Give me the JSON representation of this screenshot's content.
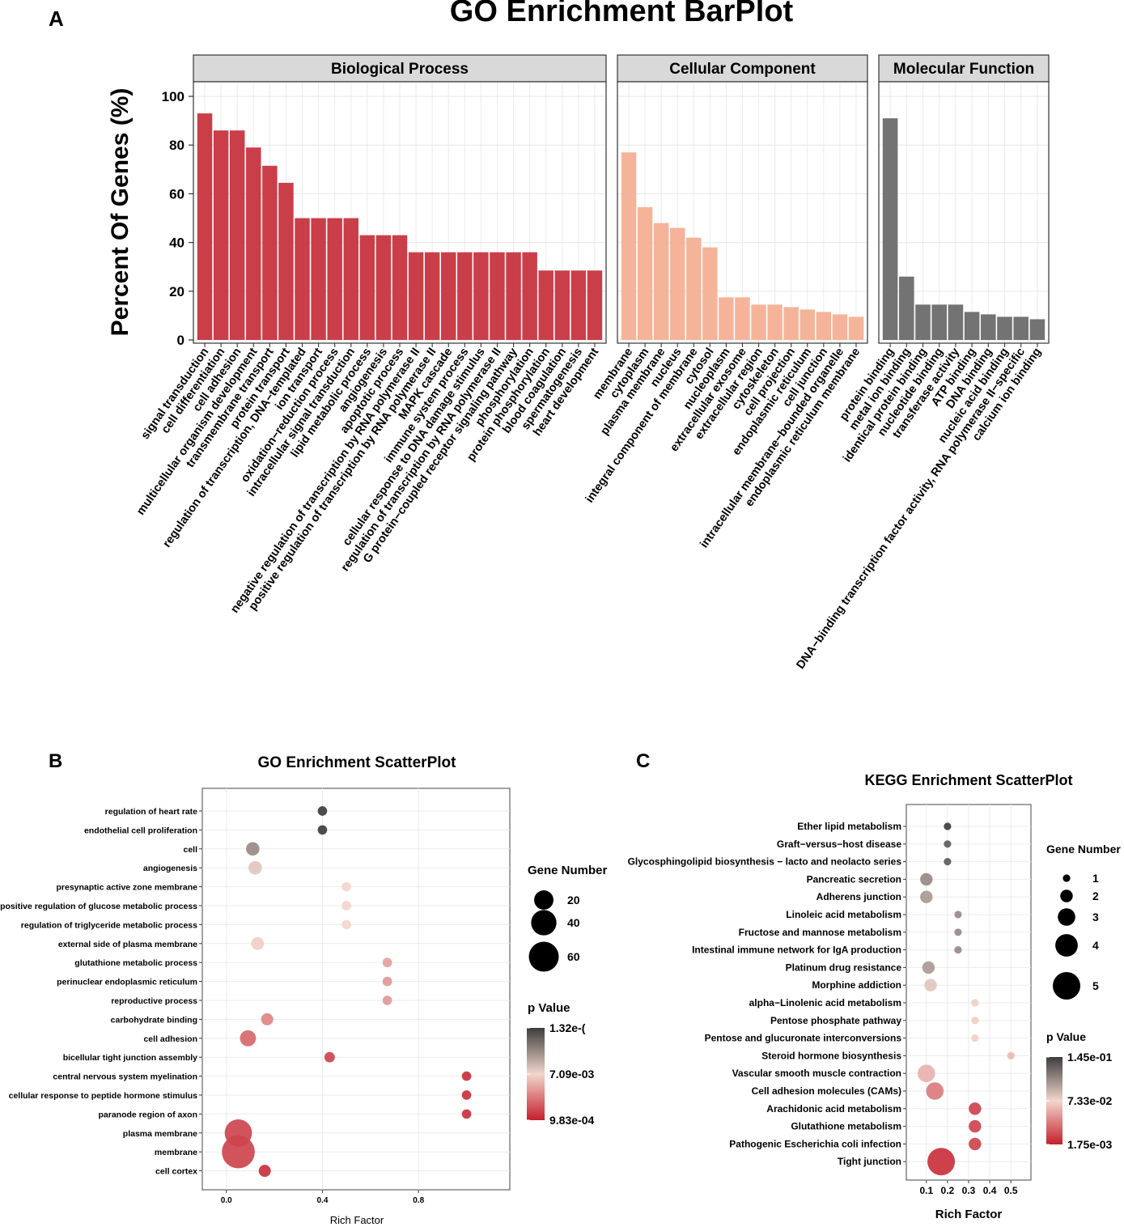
{
  "panel_letters": {
    "a": "A",
    "b": "B",
    "c": "C"
  },
  "colors": {
    "bp": "#c7343f",
    "cc": "#f4b093",
    "mf": "#6b6b6b",
    "strip": "#d9d9d9",
    "grid": "#ebebeb",
    "p_low": "#c41f2d",
    "p_mid": "#f2d6cc",
    "p_high": "#3d3d3d"
  },
  "chart_data": [
    {
      "id": "A",
      "type": "bar",
      "title": "GO Enrichment BarPlot",
      "ylabel": "Percent Of Genes (%)",
      "xlabel": "",
      "ylim": [
        0,
        105
      ],
      "yticks": [
        0,
        20,
        40,
        60,
        80,
        100
      ],
      "grid": true,
      "facets": [
        {
          "name": "Biological Process",
          "color_key": "bp",
          "categories": [
            "signal transduction",
            "cell differentiation",
            "cell adhesion",
            "multicellular organism development",
            "transmembrane transport",
            "protein transport",
            "regulation of transcription, DNA−templated",
            "ion transport",
            "oxidation−reduction process",
            "intracellular signal transduction",
            "lipid metabolic process",
            "angiogenesis",
            "apoptotic process",
            "negative regulation of transcription by RNA polymerase II",
            "positive regulation of transcription by RNA polymerase II",
            "MAPK cascade",
            "immune system process",
            "cellular response to DNA damage stimulus",
            "regulation of transcription by RNA polymerase II",
            "G protein−coupled receptor signaling pathway",
            "phosphorylation",
            "protein phosphorylation",
            "blood coagulation",
            "spermatogenesis",
            "heart development"
          ],
          "values": [
            93,
            86,
            86,
            79,
            71.5,
            64.5,
            50,
            50,
            50,
            50,
            43,
            43,
            43,
            36,
            36,
            36,
            36,
            36,
            36,
            36,
            36,
            28.5,
            28.5,
            28.5,
            28.5
          ]
        },
        {
          "name": "Cellular Component",
          "color_key": "cc",
          "categories": [
            "membrane",
            "cytoplasm",
            "plasma membrane",
            "nucleus",
            "integral component of membrane",
            "cytosol",
            "nucleoplasm",
            "extracellular exosome",
            "extracellular region",
            "cytoskeleton",
            "cell projection",
            "endoplasmic reticulum",
            "cell junction",
            "intracellular membrane−bounded organelle",
            "endoplasmic reticulum membrane"
          ],
          "values": [
            77,
            54.5,
            48,
            46,
            42,
            38,
            17.5,
            17.5,
            14.5,
            14.5,
            13.5,
            12.5,
            11.5,
            10.5,
            9.5
          ]
        },
        {
          "name": "Molecular Function",
          "color_key": "mf",
          "categories": [
            "protein binding",
            "metal ion binding",
            "identical protein binding",
            "nucleotide binding",
            "transferase activity",
            "ATP binding",
            "DNA binding",
            "nucleic acid binding",
            "DNA−binding transcription factor activity, RNA polymerase II−specific",
            "calcium ion binding"
          ],
          "values": [
            91,
            26,
            14.5,
            14.5,
            14.5,
            11.5,
            10.5,
            9.5,
            9.5,
            8.5
          ]
        }
      ]
    },
    {
      "id": "B",
      "type": "scatter",
      "title": "GO Enrichment ScatterPlot",
      "xlabel": "Rich Factor",
      "ylabel": "",
      "xlim": [
        -0.1,
        1.18
      ],
      "xticks": [
        0.0,
        0.4,
        0.8
      ],
      "xtick_labels": [
        "0.0",
        "0.4",
        "0.8"
      ],
      "categories": [
        "regulation of heart rate",
        "endothelial cell proliferation",
        "cell",
        "angiogenesis",
        "presynaptic active zone membrane",
        "positive regulation of glucose metabolic process",
        "regulation of triglyceride metabolic process",
        "external side of plasma membrane",
        "glutathione metabolic process",
        "perinuclear endoplasmic reticulum",
        "reproductive process",
        "carbohydrate binding",
        "cell adhesion",
        "bicellular tight junction assembly",
        "central nervous system myelination",
        "cellular response to peptide hormone stimulus",
        "paranode region of axon",
        "plasma membrane",
        "membrane",
        "cell cortex"
      ],
      "x": [
        0.4,
        0.4,
        0.11,
        0.12,
        0.5,
        0.5,
        0.5,
        0.13,
        0.67,
        0.67,
        0.67,
        0.17,
        0.09,
        0.43,
        1.0,
        1.0,
        1.0,
        0.05,
        0.05,
        0.16
      ],
      "gene_number": [
        2,
        2,
        7,
        7,
        2,
        2,
        2,
        6,
        2,
        2,
        2,
        5,
        12,
        3,
        2,
        2,
        2,
        48,
        75,
        5
      ],
      "p_norm": [
        1.0,
        1.0,
        0.75,
        0.55,
        0.5,
        0.5,
        0.5,
        0.48,
        0.35,
        0.33,
        0.33,
        0.28,
        0.2,
        0.1,
        0.05,
        0.05,
        0.05,
        0.1,
        0.1,
        0.05
      ],
      "size_legend": {
        "title": "Gene Number",
        "values": [
          20,
          40,
          60
        ],
        "labels": [
          "20",
          "40",
          "60"
        ]
      },
      "color_legend": {
        "title": "p Value",
        "labels": [
          "1.32e-(",
          "7.09e-03",
          "9.83e-04"
        ]
      }
    },
    {
      "id": "C",
      "type": "scatter",
      "title": "KEGG Enrichment ScatterPlot",
      "xlabel": "Rich Factor",
      "ylabel": "",
      "xlim": [
        0.005,
        0.595
      ],
      "xticks": [
        0.1,
        0.2,
        0.3,
        0.4,
        0.5
      ],
      "xtick_labels": [
        "0.1",
        "0.2",
        "0.3",
        "0.4",
        "0.5"
      ],
      "categories": [
        "Ether lipid metabolism",
        "Graft−versus−host disease",
        "Glycosphingolipid biosynthesis − lacto and neolacto series",
        "Pancreatic secretion",
        "Adherens junction",
        "Linoleic acid metabolism",
        "Fructose and mannose metabolism",
        "Intestinal immune network for IgA production",
        "Platinum drug resistance",
        "Morphine addiction",
        "alpha−Linolenic acid metabolism",
        "Pentose phosphate pathway",
        "Pentose and glucuronate interconversions",
        "Steroid hormone biosynthesis",
        "Vascular smooth muscle contraction",
        "Cell adhesion molecules (CAMs)",
        "Arachidonic acid metabolism",
        "Glutathione metabolism",
        "Pathogenic Escherichia coli infection",
        "Tight junction"
      ],
      "x": [
        0.2,
        0.2,
        0.2,
        0.1,
        0.1,
        0.25,
        0.25,
        0.25,
        0.11,
        0.12,
        0.33,
        0.33,
        0.33,
        0.5,
        0.1,
        0.14,
        0.33,
        0.33,
        0.33,
        0.17
      ],
      "gene_number": [
        1,
        1,
        1,
        2,
        2,
        1,
        1,
        1,
        2,
        2,
        1,
        1,
        1,
        1,
        3,
        3,
        2,
        2,
        2,
        5
      ],
      "p_norm": [
        1.0,
        0.9,
        0.9,
        0.75,
        0.7,
        0.75,
        0.75,
        0.75,
        0.7,
        0.55,
        0.48,
        0.48,
        0.48,
        0.42,
        0.4,
        0.25,
        0.1,
        0.1,
        0.1,
        0.05
      ],
      "size_legend": {
        "title": "Gene Number",
        "values": [
          1,
          2,
          3,
          4,
          5
        ],
        "labels": [
          "1",
          "2",
          "3",
          "4",
          "5"
        ]
      },
      "color_legend": {
        "title": "p Value",
        "labels": [
          "1.45e-01",
          "7.33e-02",
          "1.75e-03"
        ]
      }
    }
  ]
}
